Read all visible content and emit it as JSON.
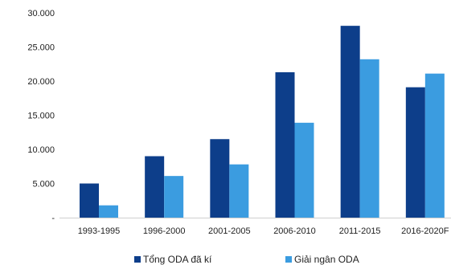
{
  "chart_data": {
    "type": "bar",
    "title": "",
    "xlabel": "",
    "ylabel": "",
    "categories": [
      "1993-1995",
      "1996-2000",
      "2001-2005",
      "2006-2010",
      "2011-2015",
      "2016-2020F"
    ],
    "series": [
      {
        "name": "Tổng ODA đã kí",
        "color": "#0d3e8a",
        "values": [
          5000,
          9000,
          11500,
          21300,
          28100,
          19100
        ]
      },
      {
        "name": "Giải ngân ODA",
        "color": "#3b9ce0",
        "values": [
          1800,
          6100,
          7800,
          13900,
          23200,
          21100
        ]
      }
    ],
    "ylim": [
      0,
      30000
    ],
    "yticks": [
      0,
      5000,
      10000,
      15000,
      20000,
      25000,
      30000
    ],
    "ytick_labels": [
      "-",
      "5.000",
      "10.000",
      "15.000",
      "20.000",
      "25.000",
      "30.000"
    ],
    "grid": false,
    "legend_position": "bottom"
  }
}
